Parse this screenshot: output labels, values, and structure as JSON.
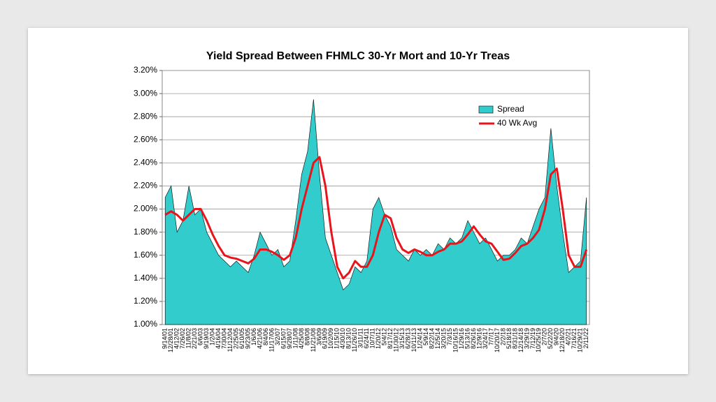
{
  "chart_data": {
    "type": "area",
    "title": "Yield Spread Between FHMLC 30-Yr Mort and 10-Yr Treas",
    "categories": [
      "9/14/01",
      "12/28/01",
      "4/12/02",
      "7/26/02",
      "11/8/02",
      "2/21/03",
      "6/6/03",
      "9/19/03",
      "1/2/04",
      "4/16/04",
      "7/30/04",
      "11/12/04",
      "2/25/05",
      "6/10/05",
      "9/23/05",
      "1/6/06",
      "4/21/06",
      "8/4/06",
      "11/17/06",
      "3/2/07",
      "6/15/07",
      "9/28/07",
      "1/11/08",
      "4/25/08",
      "8/8/08",
      "11/21/08",
      "3/6/09",
      "6/19/09",
      "10/2/09",
      "1/15/10",
      "4/30/10",
      "8/13/10",
      "11/26/10",
      "3/11/11",
      "6/24/11",
      "10/7/11",
      "1/20/12",
      "5/4/12",
      "8/17/12",
      "11/30/12",
      "3/15/13",
      "6/28/13",
      "10/11/13",
      "1/24/14",
      "5/9/14",
      "8/22/14",
      "12/5/14",
      "3/20/15",
      "7/3/15",
      "10/16/15",
      "1/29/16",
      "5/13/16",
      "8/26/16",
      "12/9/16",
      "3/24/17",
      "7/7/17",
      "10/20/17",
      "2/2/18",
      "5/18/18",
      "8/31/18",
      "12/14/18",
      "3/29/19",
      "7/12/19",
      "10/25/19",
      "2/7/20",
      "5/22/20",
      "9/4/20",
      "12/18/20",
      "4/2/21",
      "7/16/21",
      "10/29/21",
      "2/11/22"
    ],
    "series": [
      {
        "name": "Spread",
        "kind": "area",
        "color": "#33cccc",
        "values": [
          2.1,
          2.2,
          1.8,
          1.9,
          2.2,
          1.95,
          2.0,
          1.8,
          1.7,
          1.6,
          1.55,
          1.5,
          1.55,
          1.5,
          1.45,
          1.6,
          1.8,
          1.7,
          1.6,
          1.65,
          1.5,
          1.55,
          1.9,
          2.3,
          2.5,
          2.95,
          2.3,
          1.75,
          1.6,
          1.45,
          1.3,
          1.35,
          1.5,
          1.45,
          1.55,
          2.0,
          2.1,
          1.95,
          1.85,
          1.65,
          1.6,
          1.55,
          1.65,
          1.6,
          1.65,
          1.6,
          1.7,
          1.65,
          1.75,
          1.7,
          1.75,
          1.9,
          1.8,
          1.7,
          1.75,
          1.65,
          1.55,
          1.6,
          1.6,
          1.65,
          1.75,
          1.7,
          1.85,
          2.0,
          2.1,
          2.7,
          2.2,
          1.8,
          1.45,
          1.5,
          1.55,
          2.1
        ]
      },
      {
        "name": "40 Wk Avg",
        "kind": "line",
        "color": "#e8141b",
        "values": [
          1.95,
          1.98,
          1.95,
          1.9,
          1.95,
          2.0,
          2.0,
          1.9,
          1.78,
          1.68,
          1.6,
          1.58,
          1.57,
          1.55,
          1.53,
          1.57,
          1.65,
          1.65,
          1.63,
          1.6,
          1.56,
          1.6,
          1.75,
          2.0,
          2.2,
          2.4,
          2.45,
          2.2,
          1.8,
          1.5,
          1.4,
          1.45,
          1.55,
          1.5,
          1.5,
          1.6,
          1.8,
          1.95,
          1.92,
          1.75,
          1.65,
          1.62,
          1.65,
          1.63,
          1.6,
          1.6,
          1.63,
          1.65,
          1.7,
          1.7,
          1.72,
          1.78,
          1.85,
          1.78,
          1.72,
          1.7,
          1.63,
          1.56,
          1.57,
          1.62,
          1.68,
          1.7,
          1.75,
          1.82,
          2.0,
          2.3,
          2.35,
          2.0,
          1.6,
          1.5,
          1.5,
          1.65
        ]
      }
    ],
    "ylim": [
      1,
      3.2
    ],
    "yticks": [
      {
        "value": 1.0,
        "label": "1.00%"
      },
      {
        "value": 1.2,
        "label": "1.20%"
      },
      {
        "value": 1.4,
        "label": "1.40%"
      },
      {
        "value": 1.6,
        "label": "1.60%"
      },
      {
        "value": 1.8,
        "label": "1.80%"
      },
      {
        "value": 2.0,
        "label": "2.00%"
      },
      {
        "value": 2.2,
        "label": "2.20%"
      },
      {
        "value": 2.4,
        "label": "2.40%"
      },
      {
        "value": 2.6,
        "label": "2.60%"
      },
      {
        "value": 2.8,
        "label": "2.80%"
      },
      {
        "value": 3.0,
        "label": "3.00%"
      },
      {
        "value": 3.2,
        "label": "3.20%"
      }
    ],
    "grid": true,
    "legend": "upper right"
  }
}
